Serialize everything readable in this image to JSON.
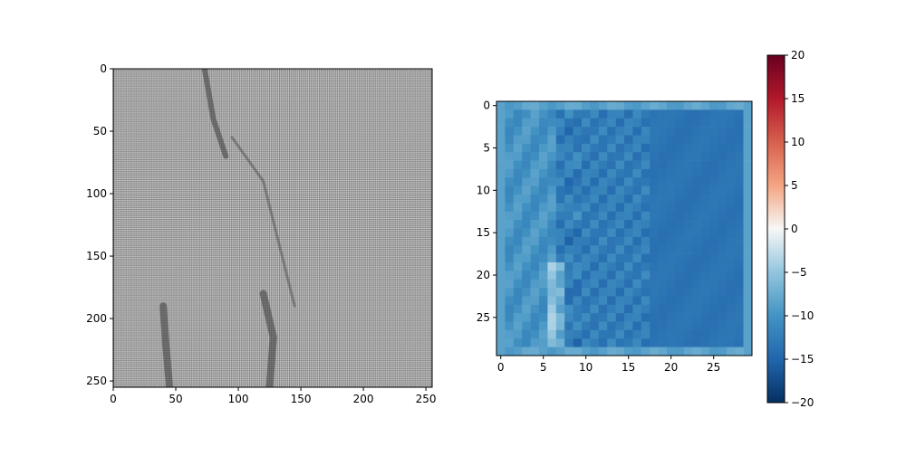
{
  "chart_data": [
    {
      "type": "image",
      "colormap": "gray",
      "xlim": [
        0,
        255
      ],
      "ylim": [
        255,
        0
      ],
      "xticks": [
        0,
        50,
        100,
        150,
        200,
        250
      ],
      "yticks": [
        0,
        50,
        100,
        150,
        200,
        250
      ],
      "xtick_labels": [
        "0",
        "50",
        "100",
        "150",
        "200",
        "250"
      ],
      "ytick_labels": [
        "0",
        "50",
        "100",
        "150",
        "200",
        "250"
      ],
      "features": [
        {
          "kind": "dark-streak",
          "points": [
            [
              73,
              0
            ],
            [
              80,
              40
            ],
            [
              90,
              70
            ]
          ]
        },
        {
          "kind": "ridge-curve",
          "points": [
            [
              95,
              55
            ],
            [
              120,
              90
            ],
            [
              145,
              190
            ]
          ]
        },
        {
          "kind": "dark-blob",
          "points": [
            [
              120,
              180
            ],
            [
              128,
              215
            ],
            [
              125,
              255
            ]
          ]
        },
        {
          "kind": "dark-blob",
          "points": [
            [
              40,
              190
            ],
            [
              42,
              220
            ],
            [
              45,
              255
            ]
          ]
        }
      ]
    },
    {
      "type": "heatmap",
      "colormap": "RdBu_r",
      "size": [
        30,
        30
      ],
      "xlim": [
        -0.5,
        29.5
      ],
      "ylim": [
        29.5,
        -0.5
      ],
      "xticks": [
        0,
        5,
        10,
        15,
        20,
        25
      ],
      "yticks": [
        0,
        5,
        10,
        15,
        20,
        25
      ],
      "xtick_labels": [
        "0",
        "5",
        "10",
        "15",
        "20",
        "25"
      ],
      "ytick_labels": [
        "0",
        "5",
        "10",
        "15",
        "20",
        "25"
      ],
      "vmin": -20,
      "vmax": 20,
      "colorbar": {
        "ticks": [
          20,
          15,
          10,
          5,
          0,
          -5,
          -10,
          -15,
          -20
        ],
        "tick_labels": [
          "20",
          "15",
          "10",
          "5",
          "0",
          "−5",
          "−10",
          "−15",
          "−20"
        ]
      },
      "value_summary": {
        "border_value": -7.5,
        "left_region": -10,
        "middle_region": -12.5,
        "right_region": -13.5
      }
    }
  ]
}
